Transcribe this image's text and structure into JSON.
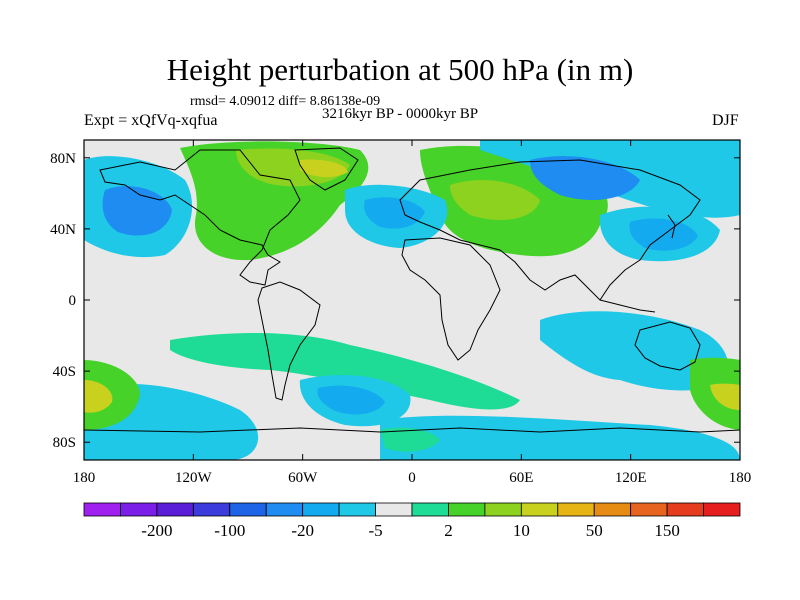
{
  "header": {
    "title": "Height perturbation at 500 hPa (in m)",
    "stats": "rmsd= 4.09012 diff= 8.86138e-09",
    "period": "3216kyr BP - 0000kyr BP",
    "experiment": "Expt = xQfVq-xqfua",
    "season": "DJF"
  },
  "axes": {
    "y_ticks": [
      {
        "label": "80N",
        "lat": 80
      },
      {
        "label": "40N",
        "lat": 40
      },
      {
        "label": "0",
        "lat": 0
      },
      {
        "label": "40S",
        "lat": -40
      },
      {
        "label": "80S",
        "lat": -80
      }
    ],
    "x_ticks": [
      {
        "label": "180",
        "lon": -180
      },
      {
        "label": "120W",
        "lon": -120
      },
      {
        "label": "60W",
        "lon": -60
      },
      {
        "label": "0",
        "lon": 0
      },
      {
        "label": "60E",
        "lon": 60
      },
      {
        "label": "120E",
        "lon": 120
      },
      {
        "label": "180",
        "lon": 180
      }
    ]
  },
  "colorbar": {
    "colors": [
      "#a020f0",
      "#7b1ee8",
      "#5a1ed8",
      "#3c3cdc",
      "#1e64e6",
      "#1e8cf0",
      "#14aaf0",
      "#1ec8e6",
      "#e8e8e8",
      "#1edc96",
      "#46d228",
      "#8cd21e",
      "#c8d21e",
      "#e6b414",
      "#e68c14",
      "#e6641e",
      "#e63c1e",
      "#e61e1e"
    ],
    "labels": [
      {
        "text": "-200",
        "edge": 2
      },
      {
        "text": "-100",
        "edge": 4
      },
      {
        "text": "-20",
        "edge": 6
      },
      {
        "text": "-5",
        "edge": 8
      },
      {
        "text": "2",
        "edge": 10
      },
      {
        "text": "10",
        "edge": 12
      },
      {
        "text": "50",
        "edge": 14
      },
      {
        "text": "150",
        "edge": 16
      }
    ]
  },
  "field_colors": {
    "land_bg": "#e8e8e8",
    "neg_light": "#1ec8e6",
    "neg_mid": "#14aaf0",
    "neg_strong": "#1e8cf0",
    "pos_light": "#1edc96",
    "pos_mid": "#46d228",
    "pos_strong": "#8cd21e",
    "pos_peak": "#c8d21e"
  }
}
